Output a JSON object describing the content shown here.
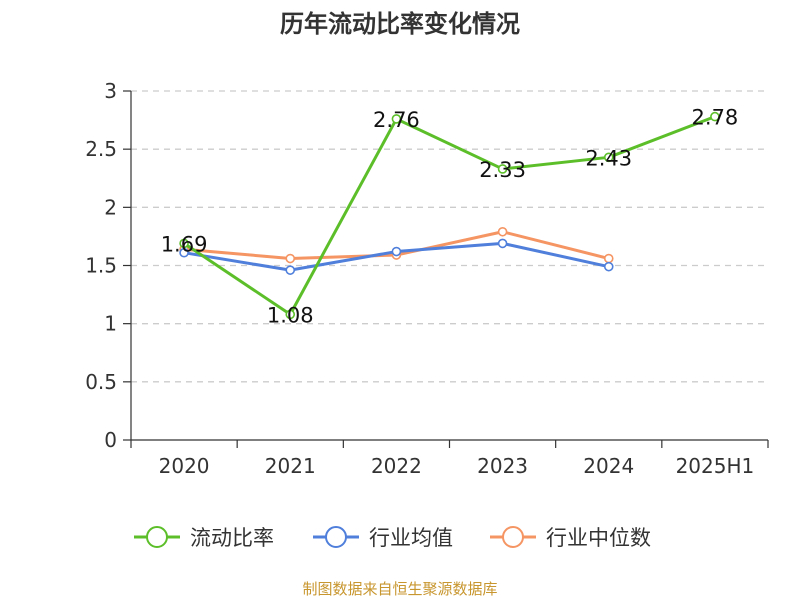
{
  "chart_data": {
    "type": "line",
    "title": "历年流动比率变化情况",
    "categories": [
      "2020",
      "2021",
      "2022",
      "2023",
      "2024",
      "2025H1"
    ],
    "ylim": [
      0,
      3
    ],
    "yticks": [
      "0",
      "0.5",
      "1",
      "1.5",
      "2",
      "2.5",
      "3"
    ],
    "grid": true,
    "legend_placement": "bottom",
    "series": [
      {
        "name": "流动比率",
        "color": "#5cbf2a",
        "values": [
          1.69,
          1.08,
          2.76,
          2.33,
          2.43,
          2.78
        ],
        "labels": [
          "1.69",
          "1.08",
          "2.76",
          "2.33",
          "2.43",
          "2.78"
        ]
      },
      {
        "name": "行业均值",
        "color": "#4f7fdb",
        "values": [
          1.61,
          1.46,
          1.62,
          1.69,
          1.49,
          null
        ]
      },
      {
        "name": "行业中位数",
        "color": "#f59563",
        "values": [
          1.64,
          1.56,
          1.59,
          1.79,
          1.56,
          null
        ]
      }
    ]
  },
  "source": "制图数据来自恒生聚源数据库"
}
